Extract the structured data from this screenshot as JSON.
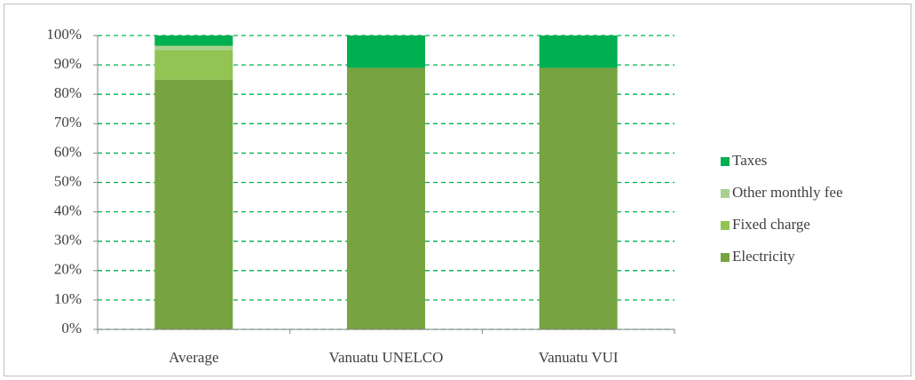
{
  "chart_data": {
    "type": "stacked_bar",
    "categories": [
      "Average",
      "Vanuatu UNELCO",
      "Vanuatu VUI"
    ],
    "series": [
      {
        "name": "Electricity",
        "color": "#77a340",
        "values": [
          85,
          89,
          89
        ]
      },
      {
        "name": "Fixed charge",
        "color": "#92c353",
        "values": [
          10,
          0,
          0
        ]
      },
      {
        "name": "Other monthly fee",
        "color": "#a9d18e",
        "values": [
          1.5,
          0,
          0
        ]
      },
      {
        "name": "Taxes",
        "color": "#00b050",
        "values": [
          3.5,
          11,
          11
        ]
      }
    ],
    "ylim": [
      0,
      100
    ],
    "yticks": [
      {
        "value": 0,
        "label": "0%"
      },
      {
        "value": 10,
        "label": "10%"
      },
      {
        "value": 20,
        "label": "20%"
      },
      {
        "value": 30,
        "label": "30%"
      },
      {
        "value": 40,
        "label": "40%"
      },
      {
        "value": 50,
        "label": "50%"
      },
      {
        "value": 60,
        "label": "60%"
      },
      {
        "value": 70,
        "label": "70%"
      },
      {
        "value": 80,
        "label": "80%"
      },
      {
        "value": 90,
        "label": "90%"
      },
      {
        "value": 100,
        "label": "100%"
      }
    ],
    "grid": true,
    "legend": "right"
  }
}
